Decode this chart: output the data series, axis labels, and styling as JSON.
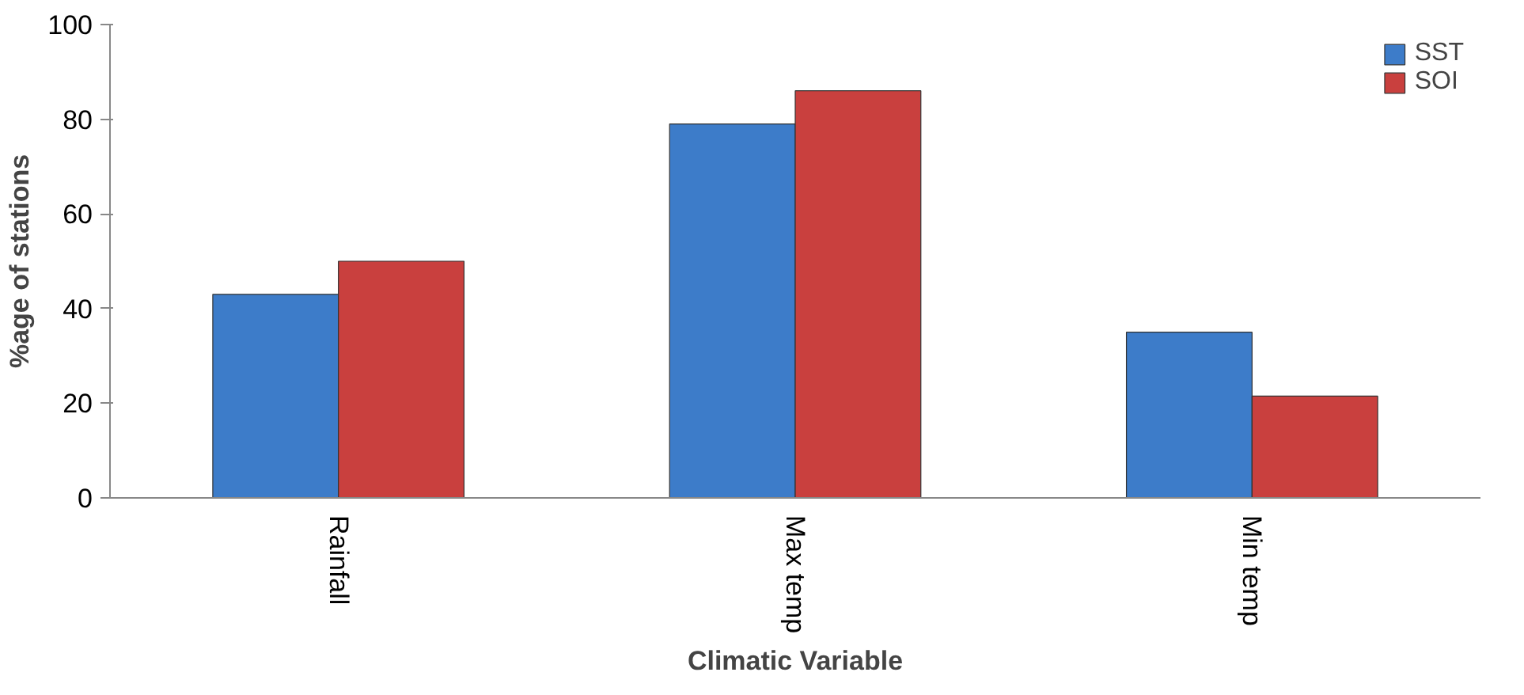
{
  "chart_data": {
    "type": "bar",
    "xlabel": "Climatic Variable",
    "ylabel": "%age of stations",
    "categories": [
      "Rainfall",
      "Max temp",
      "Min temp"
    ],
    "series": [
      {
        "name": "SST",
        "color": "#3d7cc9",
        "values": [
          43,
          79,
          35
        ]
      },
      {
        "name": "SOI",
        "color": "#c9403e",
        "values": [
          50,
          86,
          21.5
        ]
      }
    ],
    "ylim": [
      0,
      100
    ],
    "yticks": [
      0,
      20,
      40,
      60,
      80,
      100
    ],
    "grid": false,
    "legend": "top right"
  }
}
